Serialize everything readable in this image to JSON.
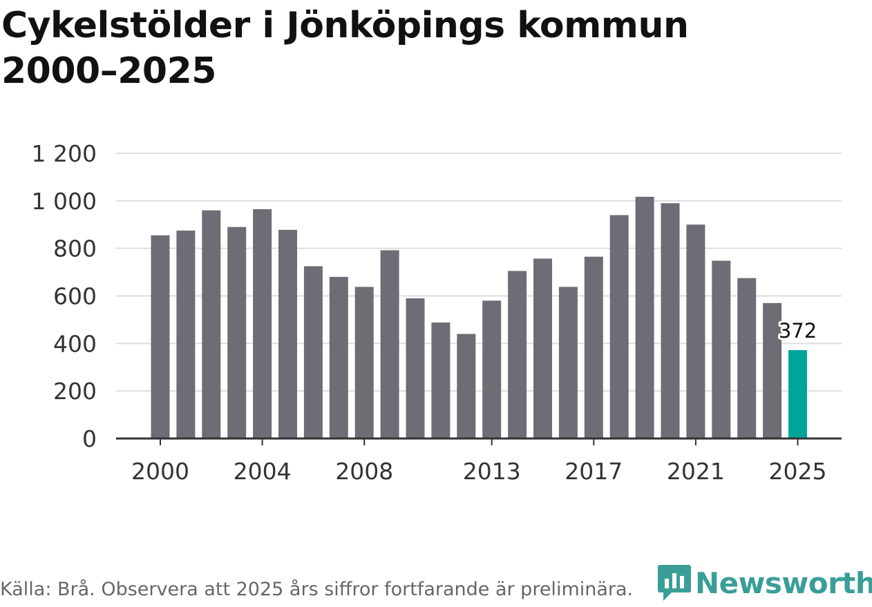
{
  "chart_data": {
    "type": "bar",
    "title": "Cykelstölder i Jönköpings kommun 2000–2025",
    "xlabel": "",
    "ylabel": "",
    "ylim": [
      0,
      1200
    ],
    "yticks": [
      0,
      200,
      400,
      600,
      800,
      1000,
      1200
    ],
    "ytick_labels": [
      "0",
      "200",
      "400",
      "600",
      "800",
      "1 000",
      "1 200"
    ],
    "xtick_years": [
      2000,
      2004,
      2008,
      2013,
      2017,
      2021,
      2025
    ],
    "categories": [
      2000,
      2001,
      2002,
      2003,
      2004,
      2005,
      2006,
      2007,
      2008,
      2009,
      2010,
      2011,
      2012,
      2013,
      2014,
      2015,
      2016,
      2017,
      2018,
      2019,
      2020,
      2021,
      2022,
      2023,
      2024,
      2025
    ],
    "values": [
      855,
      875,
      960,
      890,
      965,
      878,
      725,
      680,
      638,
      792,
      590,
      488,
      440,
      580,
      705,
      757,
      638,
      765,
      940,
      1017,
      990,
      900,
      748,
      675,
      570,
      372
    ],
    "highlight": {
      "year": 2025,
      "label": "372"
    },
    "grid": true,
    "bar_color": "#6d6d75",
    "highlight_color": "#00a59a",
    "gridline_color": "#dddddd",
    "axis_color": "#333333"
  },
  "source_text": "Källa: Brå. Observera att 2025 års siffror fortfarande är preliminära.",
  "logo": {
    "text": "Newsworthy",
    "icon": "newsworthy-logo-icon",
    "color": "#3a9e98"
  }
}
